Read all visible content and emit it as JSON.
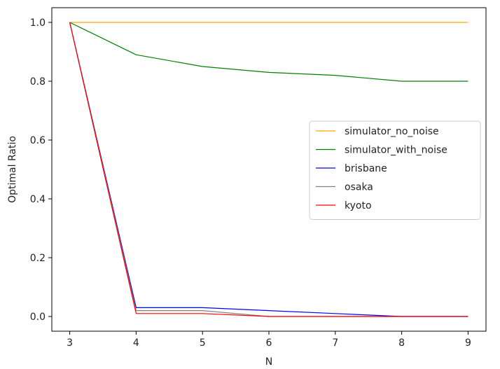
{
  "chart_data": {
    "type": "line",
    "title": "",
    "xlabel": "N",
    "ylabel": "Optimal Ratio",
    "x": [
      3,
      4,
      5,
      6,
      7,
      8,
      9
    ],
    "xlim": [
      2.73,
      9.27
    ],
    "ylim": [
      -0.05,
      1.05
    ],
    "xticks": [
      "3",
      "4",
      "5",
      "6",
      "7",
      "8",
      "9"
    ],
    "yticks": [
      "0.0",
      "0.2",
      "0.4",
      "0.6",
      "0.8",
      "1.0"
    ],
    "grid": false,
    "legend_position": "center-right",
    "series": [
      {
        "name": "simulator_no_noise",
        "color": "#ffa500",
        "values": [
          1.0,
          1.0,
          1.0,
          1.0,
          1.0,
          1.0,
          1.0
        ]
      },
      {
        "name": "simulator_with_noise",
        "color": "#008000",
        "values": [
          1.0,
          0.89,
          0.85,
          0.83,
          0.82,
          0.8,
          0.8
        ]
      },
      {
        "name": "brisbane",
        "color": "#0000ff",
        "values": [
          1.0,
          0.03,
          0.03,
          0.02,
          0.01,
          0.0,
          0.0
        ]
      },
      {
        "name": "osaka",
        "color": "#808080",
        "values": [
          1.0,
          0.02,
          0.02,
          0.0,
          0.0,
          0.0,
          0.0
        ]
      },
      {
        "name": "kyoto",
        "color": "#ff0000",
        "values": [
          1.0,
          0.01,
          0.01,
          0.0,
          0.0,
          0.0,
          0.0
        ]
      }
    ]
  }
}
